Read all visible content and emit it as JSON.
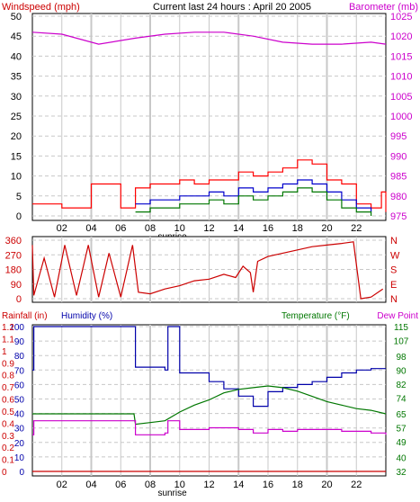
{
  "header": {
    "left_label": "Windspeed (mph)",
    "title": "Current last 24 hours : April 20 2005",
    "right_label": "Barometer (mb)"
  },
  "colors": {
    "windspeed": "#cc0000",
    "barometer": "#cc00cc",
    "gust": "#ff0000",
    "avg_wind": "#0000cc",
    "wind_dir": "#cc0000",
    "rainfall": "#cc0000",
    "humidity": "#0000aa",
    "temperature": "#007700",
    "dew_point": "#cc00cc",
    "grid": "#c8c8c8",
    "frame": "#000000"
  },
  "chart_data": [
    {
      "type": "line",
      "panel": "wind_barometer",
      "x_ticks": [
        "02",
        "04",
        "06",
        "08",
        "10",
        "12",
        "14",
        "16",
        "18",
        "20",
        "22"
      ],
      "sunrise_label": "sunrise",
      "left_axis": {
        "label": "Windspeed (mph)",
        "range": [
          0,
          50
        ],
        "ticks": [
          "0",
          "5",
          "10",
          "15",
          "20",
          "25",
          "30",
          "35",
          "40",
          "45",
          "50"
        ]
      },
      "right_axis": {
        "label": "Barometer (mb)",
        "range": [
          975,
          1025
        ],
        "ticks": [
          "975",
          "980",
          "985",
          "990",
          "995",
          "1000",
          "1005",
          "1010",
          "1015",
          "1020",
          "1025"
        ]
      },
      "grid": true,
      "series": [
        {
          "name": "Barometer (mb)",
          "axis": "right",
          "x": [
            0,
            2,
            4.5,
            7,
            9,
            11,
            13,
            15,
            17,
            19,
            21,
            23,
            24
          ],
          "y": [
            1021,
            1020.5,
            1018,
            1019.5,
            1020.5,
            1021,
            1021,
            1020,
            1018.5,
            1018,
            1018,
            1018.5,
            1018
          ]
        },
        {
          "name": "Gust",
          "axis": "left",
          "x": [
            0,
            2,
            2,
            4,
            4,
            6,
            6,
            7,
            8,
            9,
            10,
            11,
            12,
            13,
            14,
            15,
            16,
            17,
            18,
            19,
            20,
            21,
            22,
            23,
            23.7,
            24
          ],
          "y": [
            3,
            3,
            2,
            2,
            8,
            8,
            2,
            7,
            8,
            8,
            9,
            8,
            9,
            9,
            11,
            10,
            11,
            12,
            14,
            13,
            9,
            8,
            3,
            2,
            6,
            1
          ]
        },
        {
          "name": "Avg wind",
          "axis": "left",
          "x": [
            7,
            8,
            9,
            10,
            11,
            12,
            13,
            14,
            15,
            16,
            17,
            18,
            19,
            20,
            21,
            22,
            23
          ],
          "y": [
            3,
            4,
            4,
            5,
            5,
            6,
            5,
            7,
            6,
            7,
            8,
            9,
            8,
            6,
            4,
            2,
            1
          ]
        },
        {
          "name": "Min wind",
          "axis": "left",
          "x": [
            7,
            8,
            9,
            10,
            11,
            12,
            13,
            14,
            15,
            16,
            17,
            18,
            19,
            20,
            21,
            22,
            23
          ],
          "y": [
            1,
            2,
            2,
            3,
            3,
            4,
            3,
            5,
            4,
            5,
            6,
            7,
            6,
            4,
            2,
            1,
            0
          ]
        }
      ]
    },
    {
      "type": "line",
      "panel": "wind_direction",
      "left_axis": {
        "range": [
          0,
          360
        ],
        "ticks": [
          "0",
          "90",
          "180",
          "270",
          "360"
        ]
      },
      "right_axis": {
        "ticks": [
          "N",
          "E",
          "S",
          "W",
          "N"
        ]
      },
      "grid": true,
      "series": [
        {
          "name": "Wind direction",
          "axis": "left",
          "x": [
            0,
            0.1,
            0.8,
            1.5,
            2.2,
            3,
            3.8,
            4.5,
            5.2,
            6,
            6.8,
            7.2,
            8,
            9,
            10,
            11,
            12,
            13,
            13.8,
            14.3,
            14.8,
            15,
            15.3,
            16,
            17,
            18,
            19,
            20,
            21,
            21.8,
            22.3,
            23,
            23.8
          ],
          "y": [
            330,
            20,
            250,
            10,
            330,
            20,
            330,
            10,
            280,
            10,
            330,
            40,
            30,
            60,
            80,
            110,
            120,
            150,
            130,
            200,
            160,
            40,
            230,
            260,
            280,
            300,
            320,
            330,
            340,
            350,
            0,
            10,
            60
          ]
        }
      ]
    },
    {
      "type": "line",
      "panel": "rain_humidity_temperature",
      "labels": {
        "rainfall": "Rainfall (in)",
        "humidity": "Humidity (%)",
        "temperature": "Temperature (°F)",
        "dew_point": "Dew Point"
      },
      "x_ticks": [
        "02",
        "04",
        "06",
        "08",
        "10",
        "12",
        "14",
        "16",
        "18",
        "20",
        "22"
      ],
      "sunrise_label": "sunrise",
      "rainfall_axis": {
        "label": "Rainfall (in)",
        "ticks": [
          "0",
          "0.1",
          "0.2",
          "0.3",
          "0.4",
          "0.5",
          "0.6",
          "0.7",
          "0.8",
          "0.9",
          "1",
          "1.1",
          "1.2"
        ]
      },
      "humidity_axis": {
        "label": "Humidity (%)",
        "range": [
          0,
          100
        ],
        "ticks": [
          "0",
          "10",
          "20",
          "30",
          "40",
          "50",
          "60",
          "70",
          "80",
          "90",
          "100"
        ]
      },
      "temperature_axis": {
        "label": "Temperature (°F)",
        "range": [
          32,
          115
        ],
        "ticks": [
          "32",
          "40",
          "49",
          "57",
          "65",
          "74",
          "82",
          "90",
          "98",
          "107",
          "115"
        ]
      },
      "grid": true,
      "series": [
        {
          "name": "Rainfall (in)",
          "axis": "rainfall",
          "x": [
            0,
            24
          ],
          "y": [
            0,
            0
          ]
        },
        {
          "name": "Humidity (%)",
          "axis": "humidity",
          "x": [
            0,
            0.1,
            0.3,
            6.8,
            7,
            8,
            9,
            9.2,
            9.5,
            10,
            12,
            13,
            14,
            15,
            16,
            17,
            18,
            19,
            20,
            21,
            22,
            23,
            24
          ],
          "y": [
            70,
            100,
            100,
            100,
            72,
            72,
            70,
            100,
            100,
            68,
            62,
            57,
            52,
            45,
            55,
            58,
            60,
            62,
            65,
            68,
            70,
            71,
            71
          ]
        },
        {
          "name": "Temperature (°F)",
          "axis": "temperature",
          "x": [
            0,
            6.9,
            7,
            8,
            9,
            10,
            11,
            12,
            13,
            14,
            15,
            16,
            17,
            18,
            19,
            20,
            21,
            22,
            23,
            24
          ],
          "y": [
            65,
            65,
            59,
            60,
            61,
            66,
            70,
            73,
            77,
            79,
            80,
            81,
            80,
            78,
            75,
            72,
            70,
            68,
            67,
            65
          ]
        },
        {
          "name": "Dew Point",
          "axis": "temperature",
          "x": [
            0,
            0.1,
            0.3,
            6.8,
            7,
            8,
            9,
            9.2,
            9.5,
            10,
            12,
            14,
            15,
            16,
            17,
            18,
            19,
            20,
            21,
            22,
            23,
            24
          ],
          "y": [
            53,
            61,
            61,
            61,
            53,
            53,
            54,
            61,
            61,
            56,
            57,
            56,
            54,
            56,
            55,
            56,
            56,
            56,
            55,
            55,
            54,
            53
          ]
        }
      ]
    }
  ]
}
